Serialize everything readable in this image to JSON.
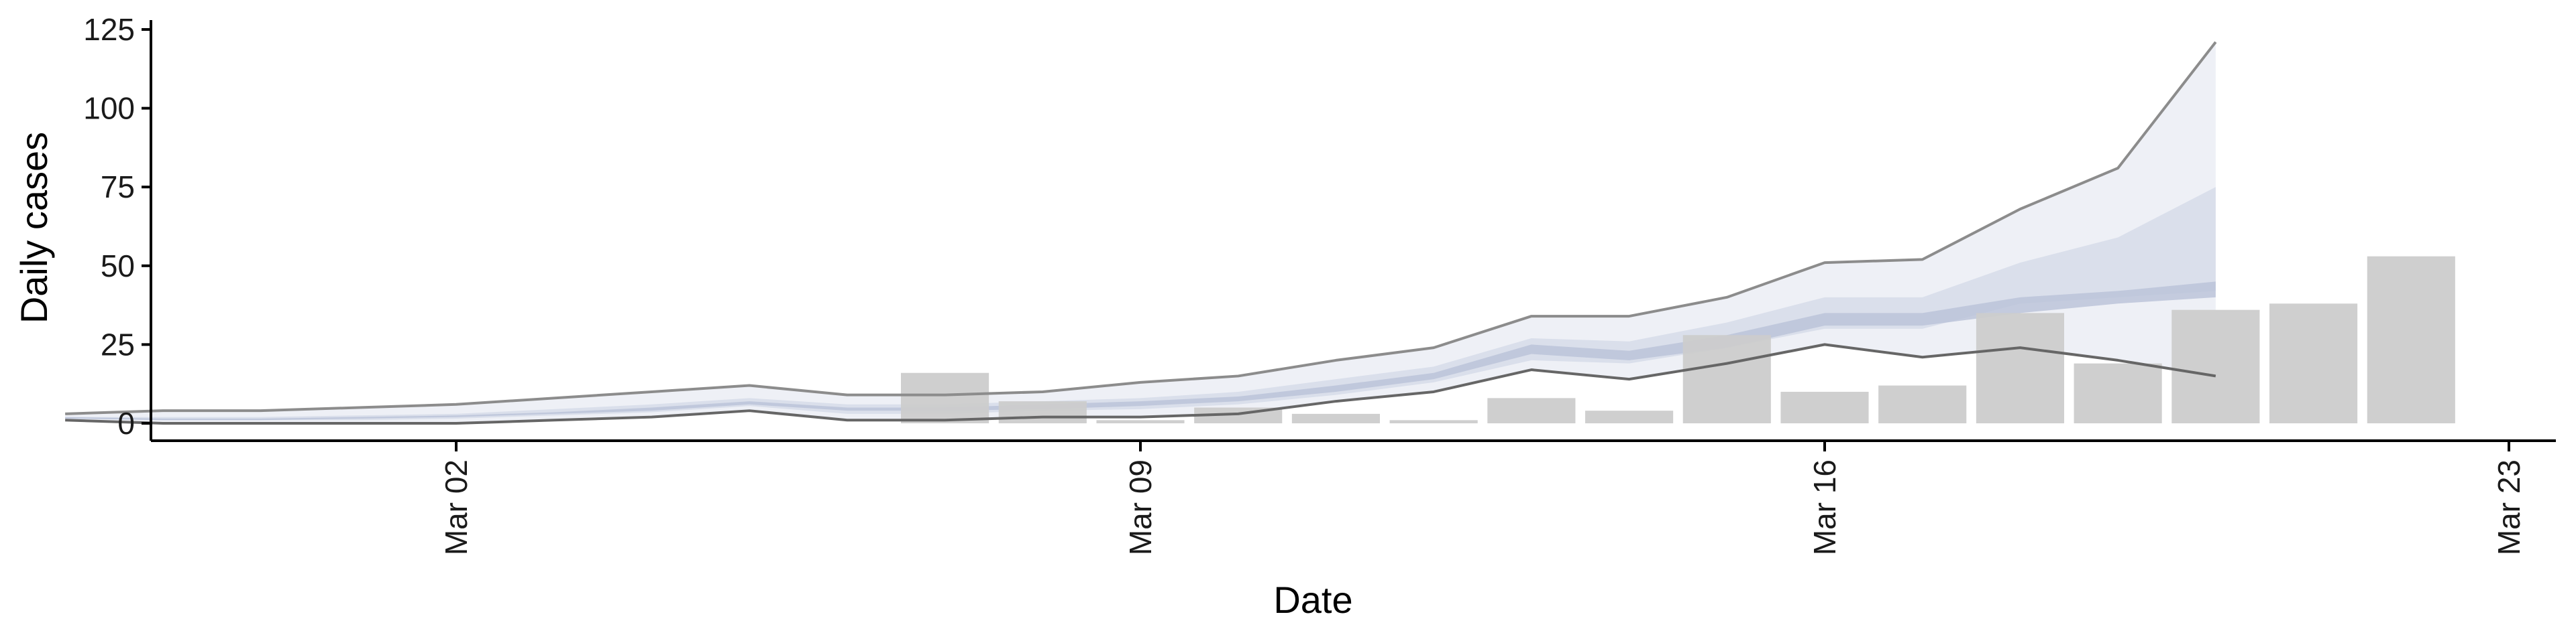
{
  "chart_data": {
    "type": "bar",
    "xlabel": "Date",
    "ylabel": "Daily cases",
    "ylim": [
      -5,
      127
    ],
    "yticks": [
      0,
      25,
      50,
      75,
      100,
      125
    ],
    "xticks": [
      "Mar 02",
      "Mar 09",
      "Mar 16",
      "Mar 23"
    ],
    "dates": [
      "Feb 27",
      "Feb 28",
      "Feb 29",
      "Mar 01",
      "Mar 02",
      "Mar 03",
      "Mar 04",
      "Mar 05",
      "Mar 06",
      "Mar 07",
      "Mar 08",
      "Mar 09",
      "Mar 10",
      "Mar 11",
      "Mar 12",
      "Mar 13",
      "Mar 14",
      "Mar 15",
      "Mar 16",
      "Mar 17",
      "Mar 18",
      "Mar 19",
      "Mar 20",
      "Mar 21",
      "Mar 22"
    ],
    "observed_cases": {
      "dates": [
        "Mar 07",
        "Mar 08",
        "Mar 09",
        "Mar 10",
        "Mar 11",
        "Mar 12",
        "Mar 13",
        "Mar 14",
        "Mar 15",
        "Mar 16",
        "Mar 17",
        "Mar 18",
        "Mar 19",
        "Mar 20",
        "Mar 21",
        "Mar 22"
      ],
      "values": [
        16,
        7,
        1,
        5,
        3,
        1,
        8,
        4,
        28,
        10,
        12,
        35,
        19,
        36,
        38,
        53
      ]
    },
    "estimate_bands": [
      {
        "level": "outer",
        "upper": [
          3,
          4,
          4,
          5,
          6,
          8,
          10,
          12,
          9,
          9,
          10,
          13,
          15,
          20,
          24,
          34,
          34,
          40,
          51,
          52,
          68,
          81,
          121
        ],
        "lower": [
          1,
          0,
          0,
          0,
          0,
          1,
          2,
          4,
          1,
          1,
          2,
          2,
          3,
          7,
          10,
          17,
          14,
          19,
          25,
          21,
          24,
          20,
          15
        ]
      },
      {
        "level": "middle",
        "upper": [
          2,
          2,
          2,
          2.5,
          3,
          4.5,
          6,
          8,
          6,
          6,
          7,
          8,
          10,
          14,
          18,
          27,
          26,
          32,
          40,
          40,
          51,
          59,
          75
        ],
        "lower": [
          1.5,
          1,
          1,
          1,
          1.5,
          2.5,
          3.5,
          5.5,
          3,
          3,
          4,
          4.5,
          6,
          9,
          13,
          20,
          19,
          24,
          30,
          30,
          38,
          40,
          42
        ]
      },
      {
        "level": "inner",
        "upper": [
          2,
          1.5,
          1.5,
          2,
          2.5,
          3.5,
          5,
          7,
          5,
          5,
          6,
          7,
          8.5,
          12,
          16,
          25,
          23,
          28,
          35,
          35,
          40,
          42,
          45
        ],
        "lower": [
          1.5,
          1,
          1,
          1.5,
          2,
          3,
          4,
          6,
          4,
          4,
          4.5,
          5.5,
          7,
          10,
          14,
          22,
          20,
          24,
          31,
          31,
          35,
          38,
          40
        ]
      }
    ],
    "band_dates_start": "Feb 27",
    "colors": {
      "bars": "#cccccc",
      "outer_band": "#e8ebf3",
      "middle_band": "#d5dbe8",
      "inner_band": "#b9c2d8",
      "upper_line": "#8c8c8c",
      "lower_line": "#666666",
      "axis": "#000000"
    }
  }
}
